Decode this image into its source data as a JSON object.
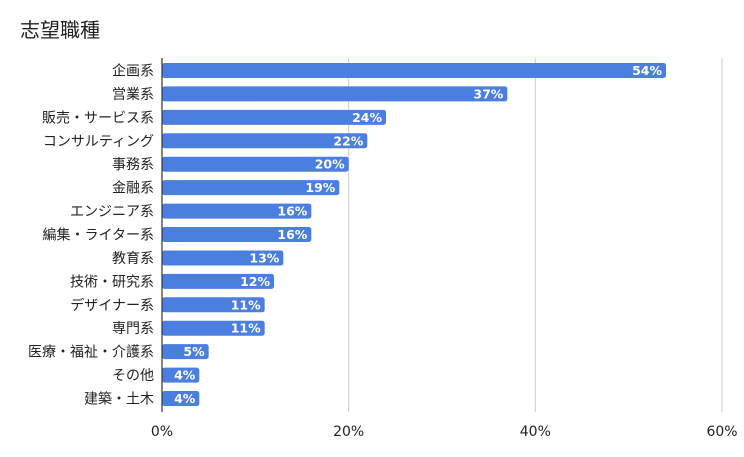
{
  "chart_data": {
    "type": "bar",
    "orientation": "horizontal",
    "title": "志望職種",
    "xlabel": "",
    "ylabel": "",
    "categories": [
      "企画系",
      "営業系",
      "販売・サービス系",
      "コンサルティング",
      "事務系",
      "金融系",
      "エンジニア系",
      "編集・ライター系",
      "教育系",
      "技術・研究系",
      "デザイナー系",
      "専門系",
      "医療・福祉・介護系",
      "その他",
      "建築・土木"
    ],
    "values": [
      54,
      37,
      24,
      22,
      20,
      19,
      16,
      16,
      13,
      12,
      11,
      11,
      5,
      4,
      4
    ],
    "data_labels": [
      "54%",
      "37%",
      "24%",
      "22%",
      "20%",
      "19%",
      "16%",
      "16%",
      "13%",
      "12%",
      "11%",
      "11%",
      "5%",
      "4%",
      "4%"
    ],
    "xlim": [
      0,
      60
    ],
    "x_ticks": [
      0,
      20,
      40,
      60
    ],
    "x_tick_labels": [
      "0%",
      "20%",
      "40%",
      "60%"
    ],
    "grid": "vertical",
    "legend": "none",
    "bar_color": "#4a7fe0",
    "label_color": "#ffffff"
  }
}
